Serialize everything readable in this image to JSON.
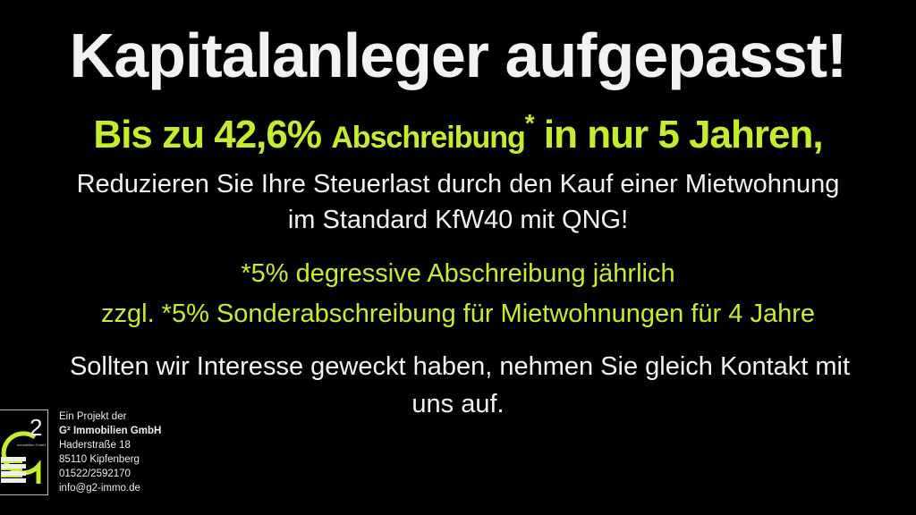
{
  "headline": "Kapitalanleger aufgepasst!",
  "subheadline": {
    "part1": "Bis zu 42,6% ",
    "part2": "Abschreibung",
    "asterisk": "*",
    "part3": " in nur 5 Jahren,"
  },
  "body": {
    "line1": "Reduzieren Sie Ihre Steuerlast durch den Kauf einer Mietwohnung",
    "line2": "im Standard KfW40 mit QNG!",
    "note1": "*5% degressive Abschreibung jährlich",
    "note2": "zzgl. *5% Sonderabschreibung für Mietwohnungen für 4 Jahre",
    "cta1": "Sollten wir Interesse geweckt haben, nehmen Sie gleich Kontakt mit",
    "cta2": "uns auf."
  },
  "logo": {
    "mark": "G2",
    "caption": "Immobilien GmbH"
  },
  "contact": {
    "intro": "Ein Projekt der",
    "company": "G² Immobilien GmbH",
    "street": "Haderstraße 18",
    "city": "85110 Kipfenberg",
    "phone": "01522/2592170",
    "email": "info@g2-immo.de"
  },
  "colors": {
    "background": "#000000",
    "accent": "#c4ee2c",
    "text": "#f2f2f2"
  }
}
